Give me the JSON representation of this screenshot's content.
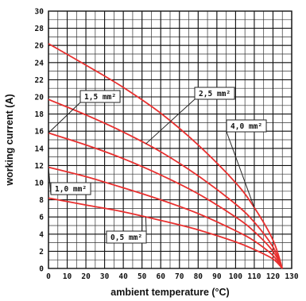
{
  "chart_data": {
    "type": "line",
    "title": "",
    "xlabel": "ambient temperature (°C)",
    "ylabel": "working current (A)",
    "xlim": [
      0,
      130
    ],
    "ylim": [
      0,
      30
    ],
    "x_ticks": [
      0,
      10,
      20,
      30,
      40,
      50,
      60,
      70,
      80,
      90,
      100,
      110,
      120,
      130
    ],
    "y_ticks": [
      0,
      2,
      4,
      6,
      8,
      10,
      12,
      14,
      16,
      18,
      20,
      22,
      24,
      26,
      28,
      30
    ],
    "grid": true,
    "line_color": "#e8302f",
    "series": [
      {
        "name": "0,5 mm²",
        "x": [
          0,
          20,
          40,
          60,
          80,
          100,
          110,
          120,
          125
        ],
        "y": [
          8.2,
          7.4,
          6.6,
          5.6,
          4.5,
          3.1,
          2.2,
          1.1,
          0
        ]
      },
      {
        "name": "1,0 mm²",
        "x": [
          0,
          20,
          40,
          60,
          80,
          100,
          110,
          120,
          125
        ],
        "y": [
          11.8,
          10.7,
          9.4,
          8.0,
          6.4,
          4.4,
          3.2,
          1.5,
          0
        ]
      },
      {
        "name": "1,5 mm²",
        "x": [
          0,
          20,
          40,
          60,
          80,
          100,
          110,
          120,
          125
        ],
        "y": [
          15.8,
          14.4,
          12.8,
          10.9,
          8.7,
          6.0,
          4.3,
          2.0,
          0
        ]
      },
      {
        "name": "2,5 mm²",
        "x": [
          0,
          20,
          40,
          60,
          80,
          100,
          110,
          120,
          125
        ],
        "y": [
          19.7,
          17.9,
          15.9,
          13.6,
          10.8,
          7.5,
          5.4,
          2.5,
          0
        ]
      },
      {
        "name": "4,0 mm²",
        "x": [
          0,
          20,
          40,
          60,
          80,
          100,
          110,
          120,
          125
        ],
        "y": [
          26.2,
          23.7,
          21.1,
          18.1,
          14.4,
          10.0,
          7.1,
          3.3,
          0
        ]
      }
    ],
    "annotations": [
      {
        "label": "1,5 mm²",
        "target_series": "1,5 mm²"
      },
      {
        "label": "2,5 mm²",
        "target_series": "2,5 mm²"
      },
      {
        "label": "4,0 mm²",
        "target_series": "4,0 mm²"
      },
      {
        "label": "1,0 mm²",
        "target_series": "1,0 mm²"
      },
      {
        "label": "0,5 mm²",
        "target_series": "0,5 mm²"
      }
    ]
  }
}
